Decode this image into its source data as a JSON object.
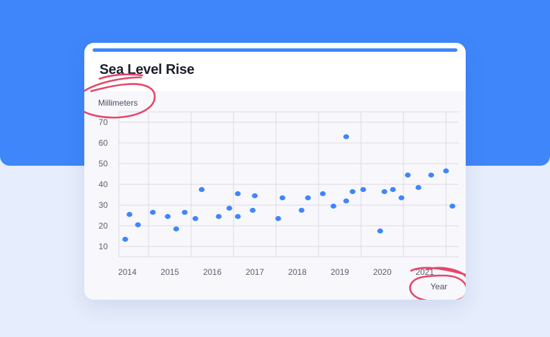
{
  "card": {
    "title": "Sea Level Rise"
  },
  "colors": {
    "background_top": "#3f86fb",
    "background_bottom": "#e6edfc",
    "point": "#3f86fb",
    "annotation": "#e5466a"
  },
  "chart_data": {
    "type": "scatter",
    "title": "Sea Level Rise",
    "ylabel": "Millimeters",
    "xlabel": "Year",
    "xlim": [
      2013.8,
      2021.8
    ],
    "ylim": [
      5,
      75
    ],
    "x_ticks": [
      "2014",
      "2015",
      "2016",
      "2017",
      "2018",
      "2019",
      "2020",
      "2021"
    ],
    "y_ticks": [
      "10",
      "20",
      "30",
      "40",
      "50",
      "60",
      "70"
    ],
    "grid": true,
    "points": [
      {
        "x": 2013.95,
        "y": 13.5
      },
      {
        "x": 2014.05,
        "y": 25.5
      },
      {
        "x": 2014.25,
        "y": 20.5
      },
      {
        "x": 2014.6,
        "y": 26.5
      },
      {
        "x": 2014.95,
        "y": 24.5
      },
      {
        "x": 2015.15,
        "y": 18.5
      },
      {
        "x": 2015.35,
        "y": 26.5
      },
      {
        "x": 2015.6,
        "y": 23.5
      },
      {
        "x": 2015.75,
        "y": 37.5
      },
      {
        "x": 2016.15,
        "y": 24.5
      },
      {
        "x": 2016.4,
        "y": 28.5
      },
      {
        "x": 2016.6,
        "y": 35.5
      },
      {
        "x": 2016.6,
        "y": 24.5
      },
      {
        "x": 2016.95,
        "y": 27.5
      },
      {
        "x": 2017.0,
        "y": 34.5
      },
      {
        "x": 2017.55,
        "y": 23.5
      },
      {
        "x": 2017.65,
        "y": 33.5
      },
      {
        "x": 2018.1,
        "y": 27.5
      },
      {
        "x": 2018.25,
        "y": 33.5
      },
      {
        "x": 2018.6,
        "y": 35.5
      },
      {
        "x": 2018.85,
        "y": 29.5
      },
      {
        "x": 2019.15,
        "y": 63.0
      },
      {
        "x": 2019.15,
        "y": 32.0
      },
      {
        "x": 2019.3,
        "y": 36.5
      },
      {
        "x": 2019.55,
        "y": 37.5
      },
      {
        "x": 2019.95,
        "y": 17.5
      },
      {
        "x": 2020.05,
        "y": 36.5
      },
      {
        "x": 2020.25,
        "y": 37.5
      },
      {
        "x": 2020.45,
        "y": 33.5
      },
      {
        "x": 2020.6,
        "y": 44.5
      },
      {
        "x": 2020.85,
        "y": 38.5
      },
      {
        "x": 2021.15,
        "y": 44.5
      },
      {
        "x": 2021.5,
        "y": 46.5
      },
      {
        "x": 2021.65,
        "y": 29.5
      }
    ]
  }
}
